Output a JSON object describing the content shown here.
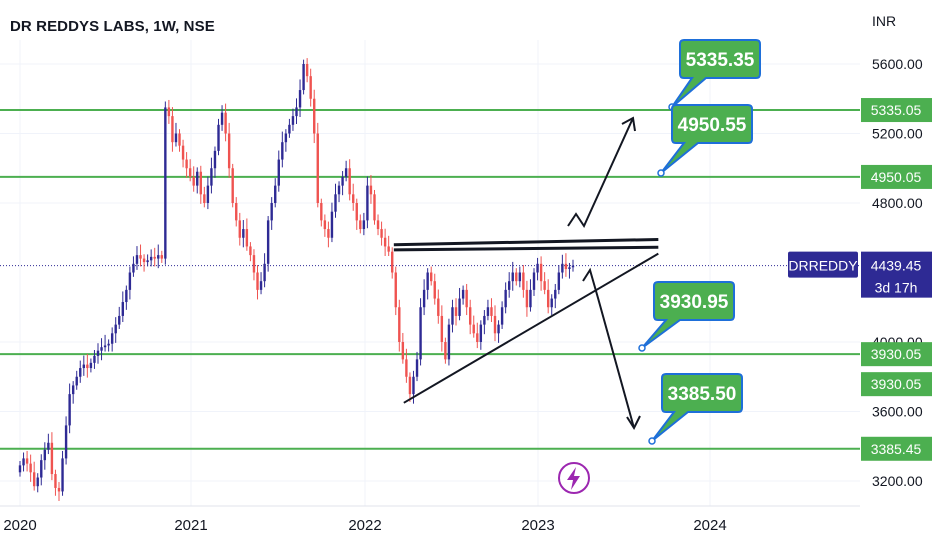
{
  "header": {
    "title": "DR REDDYS LABS, 1W, NSE",
    "currency": "INR"
  },
  "colors": {
    "up": "#2e2a94",
    "down": "#ef5350",
    "level_line": "#4caf50",
    "label_fill": "#4caf50",
    "label_border": "#1e6fd9",
    "symbol_badge": "#2e2a94",
    "trend_line": "#131722",
    "lightning": "#9c27b0"
  },
  "symbol_badge": {
    "symbol": "DRREDDY",
    "price": "4439.45",
    "countdown": "3d 17h"
  },
  "chart_data": {
    "type": "candlestick",
    "title": "DR REDDYS LABS, 1W, NSE",
    "xlabel": "",
    "ylabel": "INR",
    "y_ticks": [
      "5600.00",
      "5200.00",
      "4800.00",
      "4000.00",
      "3600.00",
      "3200.00"
    ],
    "x_ticks": [
      "2020",
      "2021",
      "2022",
      "2023",
      "2024"
    ],
    "last_price": 4439.45,
    "horizontal_levels": [
      {
        "value": 5335.05,
        "label": "5335.05"
      },
      {
        "value": 4950.05,
        "label": "4950.05"
      },
      {
        "value": 3930.05,
        "label": "3930.05"
      },
      {
        "value": 3385.45,
        "label": "3385.45"
      }
    ],
    "extra_axis_labels": [
      {
        "value": 3930.05,
        "label": "3930.05"
      }
    ],
    "callouts": [
      {
        "text": "5335.35",
        "target_value": 5335.35
      },
      {
        "text": "4950.55",
        "target_value": 4950.55
      },
      {
        "text": "3930.95",
        "target_value": 3930.95
      },
      {
        "text": "3385.50",
        "target_value": 3385.5
      }
    ],
    "resistance_lines": [
      {
        "from": {
          "date": "2022-03",
          "value": 4560
        },
        "to": {
          "date": "2023-09",
          "value": 4590
        }
      },
      {
        "from": {
          "date": "2022-03",
          "value": 4530
        },
        "to": {
          "date": "2023-09",
          "value": 4545
        }
      }
    ],
    "support_line": {
      "from": {
        "date": "2022-03",
        "value": 3650
      },
      "to": {
        "date": "2023-09",
        "value": 4520
      }
    },
    "weekly_closes": [
      3290,
      3330,
      3300,
      3250,
      3170,
      3220,
      3320,
      3380,
      3420,
      3240,
      3160,
      3140,
      3330,
      3520,
      3700,
      3750,
      3800,
      3850,
      3870,
      3850,
      3880,
      3920,
      3950,
      3970,
      3980,
      3990,
      4050,
      4100,
      4150,
      4230,
      4300,
      4400,
      4450,
      4500,
      4480,
      4460,
      4470,
      4490,
      4480,
      4500,
      4480,
      5350,
      5300,
      5150,
      5200,
      5130,
      5050,
      5000,
      4950,
      4900,
      4980,
      4850,
      4800,
      4900,
      5000,
      5100,
      5250,
      5320,
      5200,
      5000,
      4800,
      4700,
      4600,
      4650,
      4550,
      4500,
      4400,
      4300,
      4350,
      4450,
      4700,
      4800,
      4900,
      5050,
      5150,
      5200,
      5250,
      5300,
      5350,
      5450,
      5600,
      5530,
      5400,
      5200,
      4800,
      4700,
      4650,
      4600,
      4750,
      4850,
      4900,
      4950,
      5000,
      4850,
      4800,
      4700,
      4650,
      4700,
      4900,
      4850,
      4700,
      4650,
      4600,
      4550,
      4520,
      4400,
      4200,
      4000,
      3900,
      3800,
      3700,
      3800,
      3900,
      4200,
      4300,
      4400,
      4350,
      4250,
      4150,
      4000,
      3900,
      4100,
      4200,
      4150,
      4250,
      4300,
      4200,
      4100,
      4050,
      4000,
      4100,
      4150,
      4200,
      4150,
      4050,
      4100,
      4200,
      4300,
      4350,
      4400,
      4350,
      4400,
      4300,
      4200,
      4300,
      4400,
      4450,
      4350,
      4300,
      4200,
      4250,
      4300,
      4400,
      4450,
      4420,
      4430,
      4439.45
    ]
  }
}
